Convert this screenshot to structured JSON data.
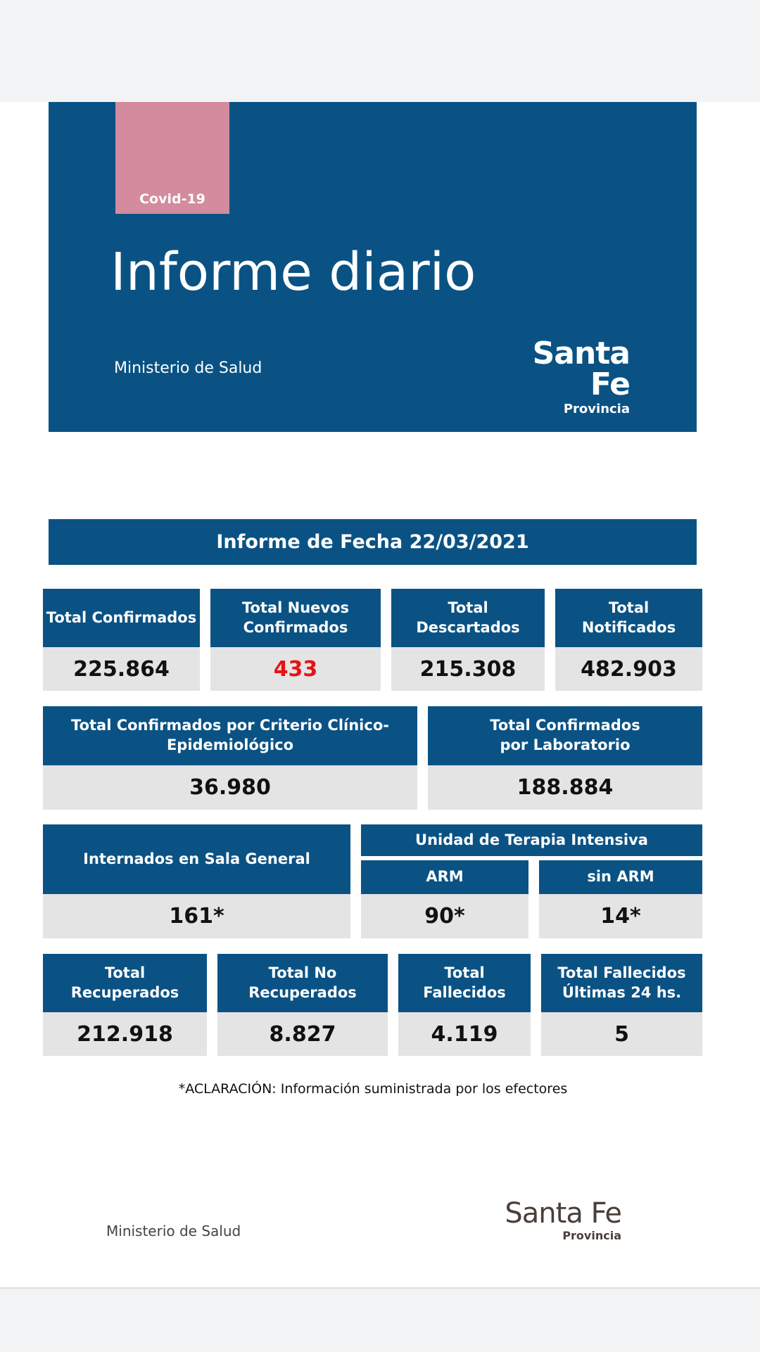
{
  "header": {
    "tag": "Covid-19",
    "title": "Informe diario",
    "ministry": "Ministerio de Salud",
    "logo_main": "Santa Fe",
    "logo_sub": "Provincia"
  },
  "report_date": "Informe de Fecha 22/03/2021",
  "row1": [
    {
      "label": "Total Confirmados",
      "value": "225.864"
    },
    {
      "label": "Total Nuevos Confirmados",
      "value": "433",
      "highlight_color": "#e81313"
    },
    {
      "label": "Total Descartados",
      "value": "215.308"
    },
    {
      "label": "Total Notificados",
      "value": "482.903"
    }
  ],
  "row2": [
    {
      "label": "Total Confirmados por Criterio Clínico-Epidemiológico",
      "value": "36.980"
    },
    {
      "label": "Total Confirmados por Laboratorio",
      "value": "188.884"
    }
  ],
  "row3": {
    "general": {
      "label": "Internados en Sala General",
      "value": "161*"
    },
    "uti_title": "Unidad de Terapia Intensiva",
    "arm": {
      "label": "ARM",
      "value": "90*"
    },
    "sin_arm": {
      "label": "sin ARM",
      "value": "14*"
    }
  },
  "row4": [
    {
      "label": "Total Recuperados",
      "value": "212.918"
    },
    {
      "label": "Total No Recuperados",
      "value": "8.827"
    },
    {
      "label": "Total Fallecidos",
      "value": "4.119"
    },
    {
      "label": "Total Fallecidos Últimas 24 hs.",
      "value": "5"
    }
  ],
  "footnote": "*ACLARACIÓN: Información suministrada por los efectores",
  "footer": {
    "ministry": "Ministerio de Salud",
    "logo_main": "Santa Fe",
    "logo_sub": "Provincia"
  },
  "colors": {
    "primary_blue": "#0a5284",
    "tag_pink": "#d48b9d",
    "cell_gray": "#e4e4e5",
    "highlight_red": "#e81313"
  }
}
